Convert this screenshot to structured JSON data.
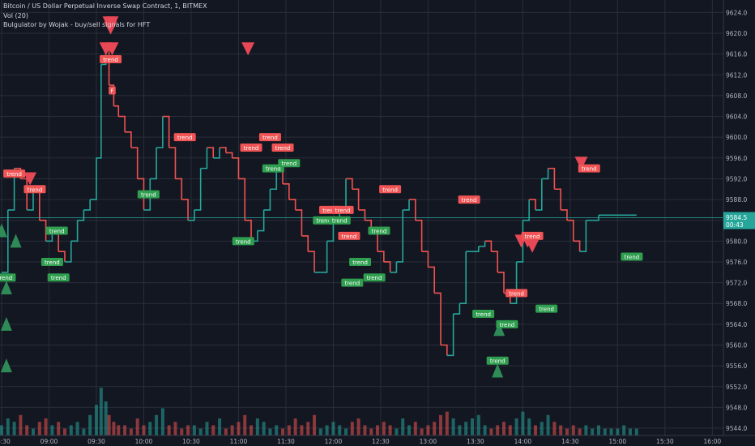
{
  "header": {
    "symbol_line": "Bitcoin / US Dollar Perpetual Inverse Swap Contract, 1, BITMEX",
    "volume_line": "Vol (20)",
    "indicator_line": "Bulgulator by Wojak - buy/sell signals for HFT"
  },
  "colors": {
    "background": "#131722",
    "grid": "#2a2e39",
    "up": "#26a69a",
    "down": "#ef5350",
    "sell_marker": "#e84855",
    "buy_marker": "#2e8b57",
    "sell_label_bg": "#f05454",
    "buy_label_bg": "#2f9e4f",
    "axis_text": "#b2b5be",
    "current_price_bg": "#26a69a"
  },
  "chart_data": {
    "type": "line",
    "title": "",
    "price_axis": {
      "ticks": [
        "9624.0",
        "9620.0",
        "9616.0",
        "9612.0",
        "9608.0",
        "9604.0",
        "9600.0",
        "9596.0",
        "9592.0",
        "9588.0",
        "9584.0",
        "9580.0",
        "9576.0",
        "9572.0",
        "9568.0",
        "9564.0",
        "9560.0",
        "9556.0",
        "9552.0",
        "9548.0",
        "9544.0"
      ],
      "ylim": [
        9542.6,
        9626.4
      ],
      "current_price": "9584.5",
      "countdown": "00:43"
    },
    "time_axis": {
      "ticks": [
        "08:30",
        "09:00",
        "09:30",
        "10:00",
        "10:30",
        "11:00",
        "11:30",
        "12:00",
        "12:30",
        "13:00",
        "13:30",
        "14:00",
        "14:30",
        "15:00",
        "15:30",
        "16:00"
      ],
      "xlim": [
        "08:30",
        "16:07"
      ]
    },
    "grid": true,
    "series": [
      {
        "x": [
          "08:30",
          "08:34",
          "08:38",
          "08:42",
          "08:46",
          "08:50",
          "08:54",
          "08:58",
          "09:02",
          "09:06",
          "09:10",
          "09:14",
          "09:18",
          "09:22",
          "09:26",
          "09:30",
          "09:33",
          "09:36",
          "09:38",
          "09:41",
          "09:44",
          "09:48",
          "09:52",
          "09:56",
          "10:00",
          "10:04",
          "10:08",
          "10:12",
          "10:16",
          "10:20",
          "10:24",
          "10:28",
          "10:32",
          "10:36",
          "10:40",
          "10:44",
          "10:48",
          "10:52",
          "10:56",
          "11:00",
          "11:04",
          "11:08",
          "11:12",
          "11:16",
          "11:20",
          "11:24",
          "11:28",
          "11:32",
          "11:36",
          "11:40",
          "11:44",
          "11:48",
          "11:52",
          "11:56",
          "12:00",
          "12:04",
          "12:08",
          "12:12",
          "12:16",
          "12:20",
          "12:24",
          "12:28",
          "12:32",
          "12:36",
          "12:40",
          "12:44",
          "12:48",
          "12:52",
          "12:56",
          "13:00",
          "13:04",
          "13:08",
          "13:12",
          "13:16",
          "13:20",
          "13:24",
          "13:28",
          "13:32",
          "13:36",
          "13:40",
          "13:44",
          "13:48",
          "13:52",
          "13:56",
          "14:00",
          "14:04",
          "14:08",
          "14:12",
          "14:16",
          "14:20",
          "14:24",
          "14:28",
          "14:32",
          "14:36",
          "14:40",
          "14:44",
          "14:48",
          "14:52",
          "14:56",
          "15:00",
          "15:04",
          "15:08",
          "15:12"
        ],
        "values": [
          9574,
          9586,
          9594,
          9592,
          9586,
          9590,
          9584,
          9580,
          9582,
          9578,
          9576,
          9580,
          9584,
          9586,
          9588,
          9596,
          9614,
          9617,
          9610,
          9606,
          9604,
          9601,
          9598,
          9592,
          9586,
          9592,
          9598,
          9604,
          9598,
          9592,
          9588,
          9584,
          9586,
          9594,
          9598,
          9596,
          9598,
          9597,
          9596,
          9592,
          9584,
          9580,
          9582,
          9586,
          9590,
          9594,
          9591,
          9588,
          9586,
          9581,
          9578,
          9574,
          9574,
          9580,
          9584,
          9586,
          9592,
          9590,
          9586,
          9584,
          9582,
          9578,
          9576,
          9574,
          9576,
          9586,
          9588,
          9584,
          9578,
          9575,
          9570,
          9560,
          9558,
          9566,
          9568,
          9578,
          9578,
          9579,
          9580,
          9578,
          9574,
          9570,
          9568,
          9576,
          9584,
          9588,
          9586,
          9592,
          9594,
          9590,
          9586,
          9584,
          9580,
          9578,
          9584,
          9584,
          9585,
          9585,
          9585,
          9585,
          9585,
          9585,
          9585
        ]
      }
    ],
    "volume": [
      3,
      5,
      4,
      6,
      3,
      2,
      4,
      5,
      3,
      4,
      2,
      3,
      4,
      2,
      6,
      9,
      14,
      10,
      6,
      4,
      3,
      3,
      2,
      5,
      3,
      4,
      6,
      8,
      3,
      4,
      2,
      3,
      3,
      2,
      4,
      3,
      5,
      2,
      3,
      4,
      6,
      3,
      5,
      4,
      2,
      3,
      2,
      3,
      5,
      3,
      4,
      6,
      2,
      3,
      4,
      3,
      2,
      4,
      5,
      3,
      2,
      3,
      4,
      3,
      2,
      5,
      3,
      4,
      2,
      3,
      4,
      6,
      7,
      5,
      3,
      4,
      5,
      6,
      3,
      2,
      3,
      4,
      3,
      5,
      7,
      5,
      3,
      4,
      6,
      4,
      3,
      2,
      3,
      2,
      3,
      2,
      3,
      2,
      2,
      2,
      3,
      2,
      2
    ],
    "signals": {
      "sell_markers": [
        {
          "time": "09:38",
          "price": 9622
        },
        {
          "time": "09:40",
          "price": 9622
        },
        {
          "time": "09:39",
          "price": 9621
        },
        {
          "time": "09:36",
          "price": 9617
        },
        {
          "time": "09:40",
          "price": 9617
        },
        {
          "time": "11:06",
          "price": 9617
        },
        {
          "time": "08:48",
          "price": 9592
        },
        {
          "time": "13:59",
          "price": 9580
        },
        {
          "time": "14:03",
          "price": 9580
        },
        {
          "time": "14:06",
          "price": 9579
        },
        {
          "time": "14:37",
          "price": 9595
        }
      ],
      "buy_markers": [
        {
          "time": "08:30",
          "price": 9582
        },
        {
          "time": "08:39",
          "price": 9580
        },
        {
          "time": "08:33",
          "price": 9571
        },
        {
          "time": "08:33",
          "price": 9564
        },
        {
          "time": "08:33",
          "price": 9556
        },
        {
          "time": "13:44",
          "price": 9555
        },
        {
          "time": "13:45",
          "price": 9563
        }
      ],
      "trend_labels": [
        {
          "text": "trend",
          "time": "08:38",
          "price": 9593,
          "side": "sell"
        },
        {
          "text": "trend",
          "time": "08:51",
          "price": 9590,
          "side": "sell"
        },
        {
          "text": "trend",
          "time": "09:39",
          "price": 9615,
          "side": "sell"
        },
        {
          "text": "trend",
          "time": "10:26",
          "price": 9600,
          "side": "sell"
        },
        {
          "text": "trend",
          "time": "11:08",
          "price": 9598,
          "side": "sell"
        },
        {
          "text": "trend",
          "time": "11:20",
          "price": 9600,
          "side": "sell"
        },
        {
          "text": "trend",
          "time": "11:28",
          "price": 9598,
          "side": "sell"
        },
        {
          "text": "trend",
          "time": "11:58",
          "price": 9586,
          "side": "sell"
        },
        {
          "text": "trend",
          "time": "12:06",
          "price": 9586,
          "side": "sell"
        },
        {
          "text": "trend",
          "time": "12:10",
          "price": 9581,
          "side": "sell"
        },
        {
          "text": "trend",
          "time": "12:36",
          "price": 9590,
          "side": "sell"
        },
        {
          "text": "trend",
          "time": "13:26",
          "price": 9588,
          "side": "sell"
        },
        {
          "text": "trend",
          "time": "14:06",
          "price": 9581,
          "side": "sell"
        },
        {
          "text": "trend",
          "time": "14:42",
          "price": 9594,
          "side": "sell"
        },
        {
          "text": "trend",
          "time": "13:56",
          "price": 9570,
          "side": "sell"
        },
        {
          "text": "trend",
          "time": "09:05",
          "price": 9582,
          "side": "buy"
        },
        {
          "text": "trend",
          "time": "09:02",
          "price": 9576,
          "side": "buy"
        },
        {
          "text": "trend",
          "time": "08:32",
          "price": 9573,
          "side": "buy"
        },
        {
          "text": "trend",
          "time": "09:06",
          "price": 9573,
          "side": "buy"
        },
        {
          "text": "trend",
          "time": "10:03",
          "price": 9589,
          "side": "buy"
        },
        {
          "text": "trend",
          "time": "11:22",
          "price": 9594,
          "side": "buy"
        },
        {
          "text": "trend",
          "time": "11:32",
          "price": 9595,
          "side": "buy"
        },
        {
          "text": "trend",
          "time": "11:54",
          "price": 9584,
          "side": "buy"
        },
        {
          "text": "trend",
          "time": "11:03",
          "price": 9580,
          "side": "buy"
        },
        {
          "text": "trend",
          "time": "12:04",
          "price": 9584,
          "side": "buy"
        },
        {
          "text": "trend",
          "time": "12:17",
          "price": 9576,
          "side": "buy"
        },
        {
          "text": "trend",
          "time": "12:26",
          "price": 9573,
          "side": "buy"
        },
        {
          "text": "trend",
          "time": "12:12",
          "price": 9572,
          "side": "buy"
        },
        {
          "text": "trend",
          "time": "12:29",
          "price": 9582,
          "side": "buy"
        },
        {
          "text": "trend",
          "time": "13:35",
          "price": 9566,
          "side": "buy"
        },
        {
          "text": "trend",
          "time": "13:50",
          "price": 9564,
          "side": "buy"
        },
        {
          "text": "trend",
          "time": "13:44",
          "price": 9557,
          "side": "buy"
        },
        {
          "text": "trend",
          "time": "14:15",
          "price": 9567,
          "side": "buy"
        },
        {
          "text": "trend",
          "time": "15:09",
          "price": 9577,
          "side": "buy"
        },
        {
          "text": "F",
          "time": "09:40",
          "price": 9609,
          "side": "sell"
        }
      ]
    }
  }
}
